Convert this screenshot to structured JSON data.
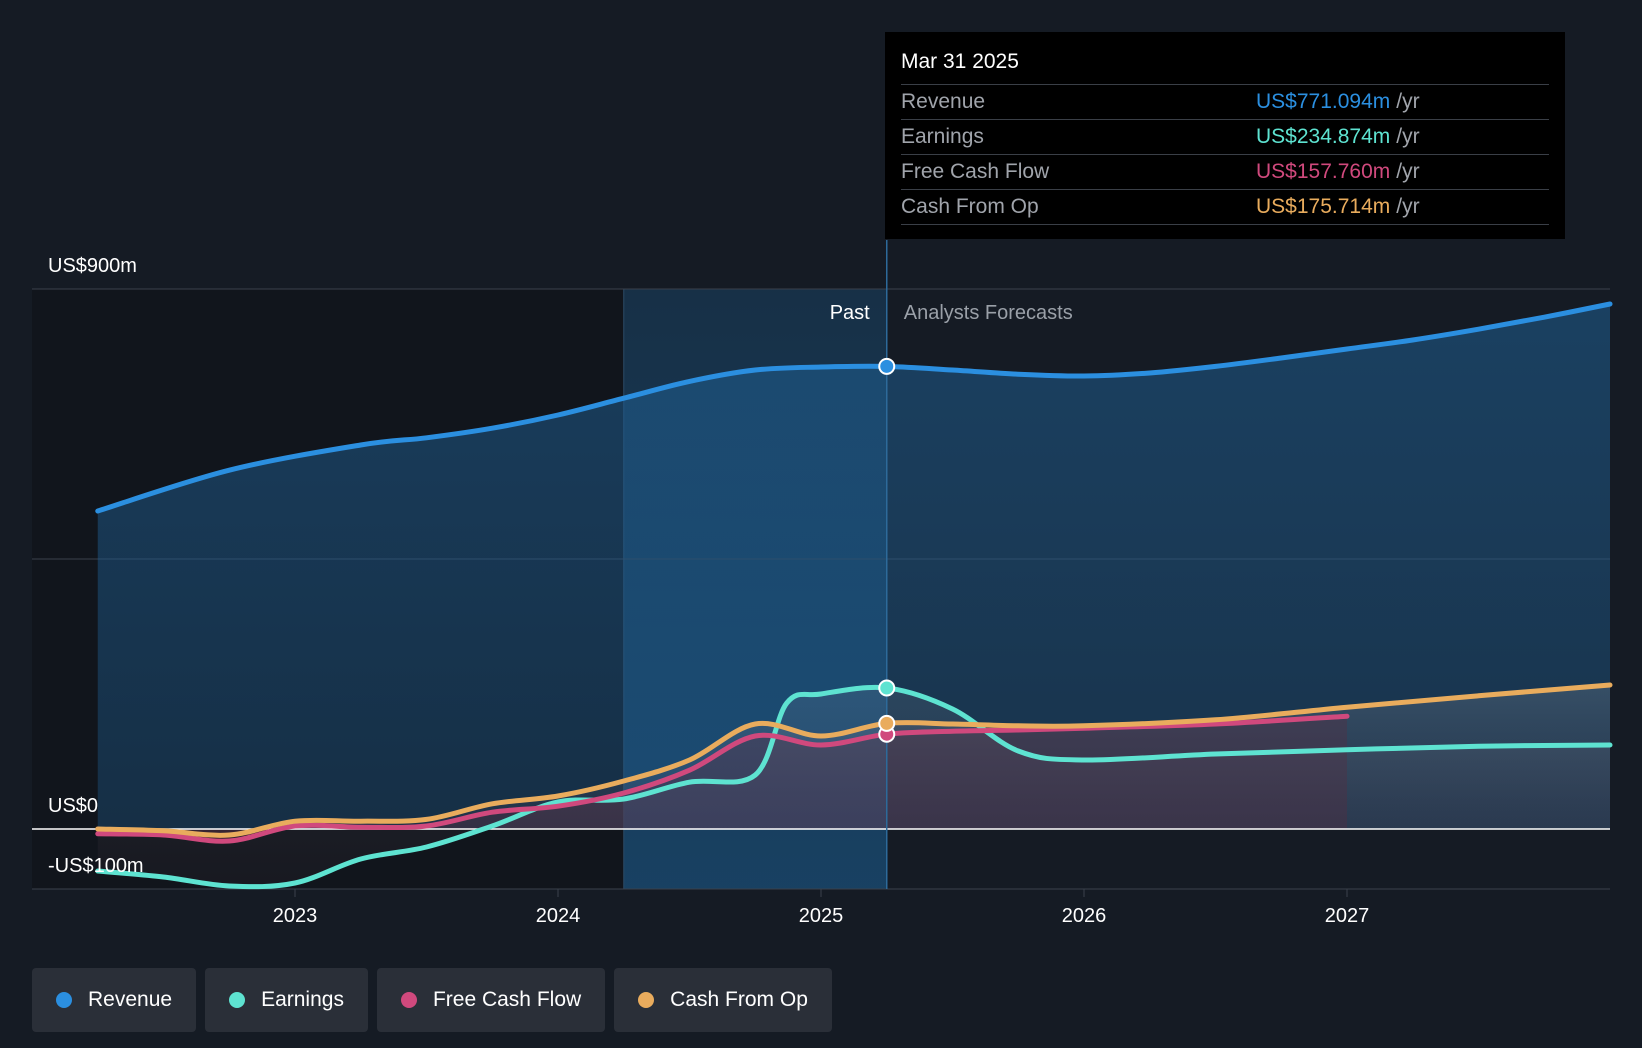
{
  "chart_data": {
    "type": "line",
    "x_unit": "year",
    "x_ticks": [
      "2023",
      "2024",
      "2025",
      "2026",
      "2027"
    ],
    "xlim": [
      2022.0,
      2028.0
    ],
    "ylim": [
      -100,
      900
    ],
    "y_labels": {
      "top": "US$900m",
      "zero": "US$0",
      "bottom": "-US$100m"
    },
    "divider_x": 2025.25,
    "highlight_start": 2024.25,
    "past_label": "Past",
    "forecast_label": "Analysts Forecasts",
    "series": [
      {
        "name": "Revenue",
        "color": "#2b8fe0",
        "points": [
          [
            2022.25,
            530
          ],
          [
            2022.75,
            598
          ],
          [
            2023.25,
            640
          ],
          [
            2023.5,
            652
          ],
          [
            2023.75,
            668
          ],
          [
            2024.0,
            690
          ],
          [
            2024.25,
            718
          ],
          [
            2024.5,
            746
          ],
          [
            2024.75,
            765
          ],
          [
            2025.0,
            770
          ],
          [
            2025.25,
            771
          ],
          [
            2025.5,
            765
          ],
          [
            2025.75,
            758
          ],
          [
            2026.0,
            755
          ],
          [
            2026.25,
            760
          ],
          [
            2026.5,
            771
          ],
          [
            2026.75,
            785
          ],
          [
            2027.0,
            800
          ],
          [
            2027.25,
            815
          ],
          [
            2027.5,
            833
          ],
          [
            2027.75,
            853
          ],
          [
            2028.0,
            875
          ]
        ]
      },
      {
        "name": "Earnings",
        "color": "#5ee3d1",
        "points": [
          [
            2022.25,
            -70
          ],
          [
            2022.5,
            -80
          ],
          [
            2022.75,
            -95
          ],
          [
            2023.0,
            -90
          ],
          [
            2023.25,
            -50
          ],
          [
            2023.5,
            -30
          ],
          [
            2023.75,
            5
          ],
          [
            2024.0,
            45
          ],
          [
            2024.25,
            50
          ],
          [
            2024.5,
            78
          ],
          [
            2024.75,
            90
          ],
          [
            2024.87,
            210
          ],
          [
            2025.0,
            225
          ],
          [
            2025.25,
            235
          ],
          [
            2025.5,
            200
          ],
          [
            2025.75,
            130
          ],
          [
            2026.0,
            115
          ],
          [
            2026.5,
            125
          ],
          [
            2027.0,
            132
          ],
          [
            2027.5,
            138
          ],
          [
            2028.0,
            140
          ]
        ]
      },
      {
        "name": "Free Cash Flow",
        "color": "#d0497d",
        "points": [
          [
            2022.25,
            -8
          ],
          [
            2022.5,
            -10
          ],
          [
            2022.75,
            -20
          ],
          [
            2023.0,
            5
          ],
          [
            2023.25,
            3
          ],
          [
            2023.5,
            5
          ],
          [
            2023.75,
            28
          ],
          [
            2024.0,
            38
          ],
          [
            2024.25,
            60
          ],
          [
            2024.5,
            98
          ],
          [
            2024.75,
            155
          ],
          [
            2025.0,
            140
          ],
          [
            2025.25,
            158
          ],
          [
            2025.5,
            163
          ],
          [
            2025.75,
            165
          ],
          [
            2026.0,
            168
          ],
          [
            2026.5,
            175
          ],
          [
            2027.0,
            188
          ]
        ]
      },
      {
        "name": "Cash From Op",
        "color": "#e9ac5d",
        "points": [
          [
            2022.25,
            0
          ],
          [
            2022.5,
            -3
          ],
          [
            2022.75,
            -10
          ],
          [
            2023.0,
            13
          ],
          [
            2023.25,
            13
          ],
          [
            2023.5,
            16
          ],
          [
            2023.75,
            42
          ],
          [
            2024.0,
            55
          ],
          [
            2024.25,
            80
          ],
          [
            2024.5,
            115
          ],
          [
            2024.75,
            175
          ],
          [
            2025.0,
            155
          ],
          [
            2025.25,
            176
          ],
          [
            2025.5,
            175
          ],
          [
            2025.75,
            172
          ],
          [
            2026.0,
            172
          ],
          [
            2026.5,
            182
          ],
          [
            2027.0,
            203
          ],
          [
            2027.5,
            222
          ],
          [
            2028.0,
            240
          ]
        ]
      }
    ]
  },
  "tooltip": {
    "date": "Mar 31 2025",
    "rows": [
      {
        "name": "Revenue",
        "value": "US$771.094m",
        "unit": "/yr",
        "color": "#2b8fe0"
      },
      {
        "name": "Earnings",
        "value": "US$234.874m",
        "unit": "/yr",
        "color": "#5ee3d1"
      },
      {
        "name": "Free Cash Flow",
        "value": "US$157.760m",
        "unit": "/yr",
        "color": "#d0497d"
      },
      {
        "name": "Cash From Op",
        "value": "US$175.714m",
        "unit": "/yr",
        "color": "#e9ac5d"
      }
    ]
  },
  "legend": [
    {
      "label": "Revenue",
      "color": "#2b8fe0"
    },
    {
      "label": "Earnings",
      "color": "#5ee3d1"
    },
    {
      "label": "Free Cash Flow",
      "color": "#d0497d"
    },
    {
      "label": "Cash From Op",
      "color": "#e9ac5d"
    }
  ]
}
